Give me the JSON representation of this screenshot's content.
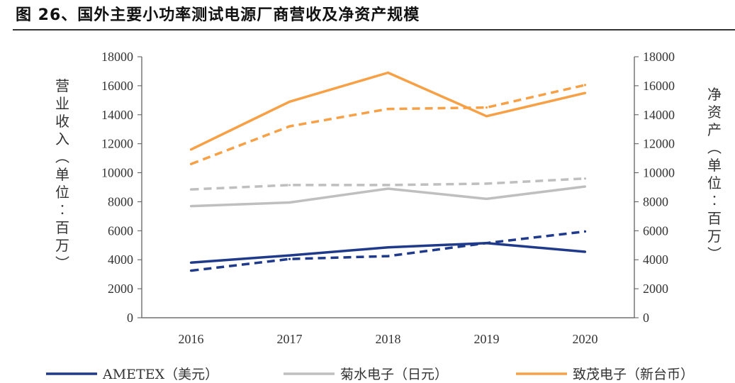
{
  "title": "图 26、国外主要小功率测试电源厂商营收及净资产规模",
  "chart_data": {
    "type": "line",
    "title": "国外主要小功率测试电源厂商营收及净资产规模",
    "categories": [
      "2016",
      "2017",
      "2018",
      "2019",
      "2020"
    ],
    "ylabel_left": "营业收入（单位：百万）",
    "ylabel_right": "净资产（单位：百万）",
    "ylim_left": [
      0,
      18000
    ],
    "ylim_right": [
      0,
      18000
    ],
    "yticks": [
      "0",
      "2000",
      "4000",
      "6000",
      "8000",
      "10000",
      "12000",
      "14000",
      "16000",
      "18000"
    ],
    "series": [
      {
        "name": "AMETEX（美元）营业收入",
        "color": "#1f3a8a",
        "dash": false,
        "axis": "left",
        "values": [
          3800,
          4300,
          4850,
          5150,
          4550
        ]
      },
      {
        "name": "AMETEX（美元）净资产",
        "color": "#1f3a8a",
        "dash": true,
        "axis": "right",
        "values": [
          3250,
          4050,
          4250,
          5150,
          5950
        ]
      },
      {
        "name": "菊水电子（日元）营业收入",
        "color": "#bfbfbf",
        "dash": false,
        "axis": "left",
        "values": [
          7700,
          7950,
          8900,
          8200,
          9050
        ]
      },
      {
        "name": "菊水电子（日元）净资产",
        "color": "#bfbfbf",
        "dash": true,
        "axis": "right",
        "values": [
          8850,
          9150,
          9150,
          9250,
          9600
        ]
      },
      {
        "name": "致茂电子（新台币）营业收入",
        "color": "#f7a046",
        "dash": false,
        "axis": "left",
        "values": [
          11600,
          14900,
          16900,
          13900,
          15500
        ]
      },
      {
        "name": "致茂电子（新台币）净资产",
        "color": "#f7a046",
        "dash": true,
        "axis": "right",
        "values": [
          10600,
          13200,
          14400,
          14500,
          16050
        ]
      }
    ],
    "legend": [
      {
        "label": "AMETEX（美元）",
        "color": "#1f3a8a"
      },
      {
        "label": "菊水电子（日元）",
        "color": "#bfbfbf"
      },
      {
        "label": "致茂电子（新台币）",
        "color": "#f7a046"
      }
    ],
    "legend_position": "bottom"
  }
}
